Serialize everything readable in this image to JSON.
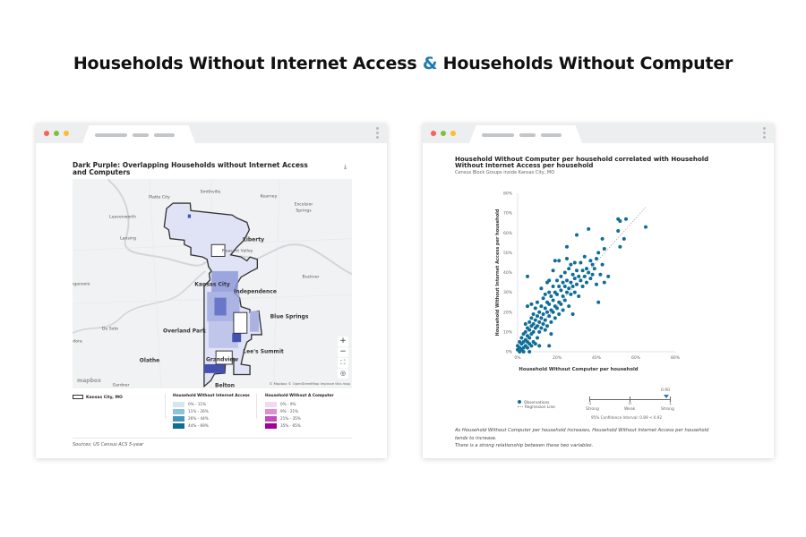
{
  "headline": {
    "part1": "Households Without Internet Access",
    "amp": "&",
    "part2": "Households Without Computer"
  },
  "colors": {
    "accent": "#1f7ab3",
    "point": "#0f6d97",
    "close": "#fe5f57",
    "minimize": "#7cc13b",
    "maximize": "#febc2e",
    "map_fill": "#dfe3f5",
    "map_dark": "#4551b0"
  },
  "left_card": {
    "title": "Dark Purple: Overlapping Households without Internet Access and Computers",
    "download_icon": "download-chart-icon",
    "map": {
      "labels": [
        "Platte City",
        "Smithville",
        "Kearney",
        "Excelsior",
        "Springs",
        "Leavenworth",
        "Lansing",
        "Liberty",
        "Pleasant Valley",
        "Buckner",
        "nganoxie",
        "Kansas City",
        "Independence",
        "Blue Springs",
        "De Soto",
        "Overland Park",
        "udora",
        "Lee's Summit",
        "Olathe",
        "Grandview",
        "Gardner",
        "Belton"
      ],
      "controls": [
        "+",
        "−",
        "⛶",
        "◎"
      ],
      "logo": "mapbox",
      "attribution": "© Mapbox © OpenStreetMap Improve this map"
    },
    "legend": {
      "boundary": "Kansas City, MO",
      "internet_title": "Household Without Internet Access",
      "internet": [
        {
          "label": "0% - 11%",
          "color": "#d6e6ee"
        },
        {
          "label": "11% - 26%",
          "color": "#8fc1d8"
        },
        {
          "label": "26% - 44%",
          "color": "#4595bb"
        },
        {
          "label": "44% - 69%",
          "color": "#0f6d97"
        }
      ],
      "computer_title": "Household Without A Computer",
      "computer": [
        {
          "label": "0% - 9%",
          "color": "#f2d9ef"
        },
        {
          "label": "9% - 21%",
          "color": "#db8fd4"
        },
        {
          "label": "21% - 35%",
          "color": "#c24bbd"
        },
        {
          "label": "35% - 65%",
          "color": "#a3009b"
        }
      ]
    },
    "source": "Sources: US Census ACS 5-year"
  },
  "right_card": {
    "title": "Household Without Computer per household correlated with Household Without Internet Access per household",
    "subtitle": "Census Block Groups inside Kansas City, MO",
    "legend": {
      "observations": "Observations",
      "regression": "Regression Line"
    },
    "correlation": {
      "value": "0.90",
      "ticks": [
        "-1",
        "0",
        "1"
      ],
      "labels": [
        "Strong",
        "Weak",
        "Strong"
      ],
      "ci": "95% Confidence Interval: 0.89 < 0.92"
    },
    "explanation": [
      "As Household Without Computer per household increases, Household Without Internet Access per household",
      "tends to increase.",
      "There is a strong relationship between these two variables."
    ]
  },
  "chart_data": {
    "type": "scatter",
    "xlabel": "Household Without Computer per household",
    "ylabel": "Household Without Internet Access per household",
    "xlim": [
      0,
      80
    ],
    "ylim": [
      0,
      80
    ],
    "xticks": [
      "0%",
      "20%",
      "40%",
      "60%",
      "80%"
    ],
    "yticks": [
      "0%",
      "10%",
      "20%",
      "30%",
      "40%",
      "50%",
      "60%",
      "70%",
      "80%"
    ],
    "regression": [
      [
        0,
        1
      ],
      [
        65,
        73
      ]
    ],
    "points": [
      [
        0,
        1
      ],
      [
        0,
        3
      ],
      [
        1,
        2
      ],
      [
        1,
        5
      ],
      [
        1,
        0
      ],
      [
        2,
        1
      ],
      [
        2,
        4
      ],
      [
        2,
        7
      ],
      [
        3,
        2
      ],
      [
        3,
        5
      ],
      [
        3,
        9
      ],
      [
        3,
        0
      ],
      [
        4,
        3
      ],
      [
        4,
        6
      ],
      [
        4,
        10
      ],
      [
        4,
        14
      ],
      [
        5,
        2
      ],
      [
        5,
        5
      ],
      [
        5,
        8
      ],
      [
        5,
        12
      ],
      [
        5,
        23
      ],
      [
        5,
        38
      ],
      [
        6,
        0
      ],
      [
        6,
        4
      ],
      [
        6,
        7
      ],
      [
        6,
        11
      ],
      [
        6,
        15
      ],
      [
        7,
        3
      ],
      [
        7,
        9
      ],
      [
        7,
        13
      ],
      [
        7,
        17
      ],
      [
        7,
        24
      ],
      [
        8,
        5
      ],
      [
        8,
        10
      ],
      [
        8,
        14
      ],
      [
        8,
        19
      ],
      [
        9,
        4
      ],
      [
        9,
        12
      ],
      [
        9,
        16
      ],
      [
        9,
        22
      ],
      [
        10,
        7
      ],
      [
        10,
        13
      ],
      [
        10,
        18
      ],
      [
        10,
        25
      ],
      [
        11,
        10
      ],
      [
        11,
        15
      ],
      [
        11,
        20
      ],
      [
        11,
        3
      ],
      [
        12,
        12
      ],
      [
        12,
        17
      ],
      [
        12,
        23
      ],
      [
        12,
        32
      ],
      [
        13,
        14
      ],
      [
        13,
        19
      ],
      [
        13,
        27
      ],
      [
        14,
        11
      ],
      [
        14,
        16
      ],
      [
        14,
        22
      ],
      [
        14,
        29
      ],
      [
        15,
        13
      ],
      [
        15,
        20
      ],
      [
        15,
        25
      ],
      [
        15,
        35
      ],
      [
        16,
        3
      ],
      [
        16,
        18
      ],
      [
        16,
        24
      ],
      [
        16,
        30
      ],
      [
        16,
        36
      ],
      [
        17,
        15
      ],
      [
        17,
        21
      ],
      [
        17,
        28
      ],
      [
        17,
        9
      ],
      [
        18,
        20
      ],
      [
        18,
        26
      ],
      [
        18,
        33
      ],
      [
        18,
        41
      ],
      [
        19,
        17
      ],
      [
        19,
        23
      ],
      [
        19,
        30
      ],
      [
        19,
        46
      ],
      [
        20,
        22
      ],
      [
        20,
        29
      ],
      [
        20,
        36
      ],
      [
        21,
        19
      ],
      [
        21,
        25
      ],
      [
        21,
        33
      ],
      [
        21,
        46
      ],
      [
        22,
        24
      ],
      [
        22,
        31
      ],
      [
        22,
        38
      ],
      [
        23,
        21
      ],
      [
        23,
        28
      ],
      [
        23,
        35
      ],
      [
        24,
        26
      ],
      [
        24,
        33
      ],
      [
        24,
        40
      ],
      [
        25,
        30
      ],
      [
        25,
        36
      ],
      [
        25,
        47
      ],
      [
        25,
        53
      ],
      [
        26,
        23
      ],
      [
        26,
        32
      ],
      [
        26,
        42
      ],
      [
        27,
        29
      ],
      [
        27,
        35
      ],
      [
        27,
        44
      ],
      [
        28,
        19
      ],
      [
        28,
        33
      ],
      [
        28,
        39
      ],
      [
        29,
        30
      ],
      [
        29,
        37
      ],
      [
        29,
        45
      ],
      [
        30,
        34
      ],
      [
        30,
        41
      ],
      [
        30,
        59
      ],
      [
        31,
        28
      ],
      [
        31,
        38
      ],
      [
        32,
        36
      ],
      [
        32,
        45
      ],
      [
        33,
        33
      ],
      [
        33,
        41
      ],
      [
        34,
        38
      ],
      [
        34,
        48
      ],
      [
        35,
        35
      ],
      [
        35,
        42
      ],
      [
        36,
        40
      ],
      [
        36,
        62
      ],
      [
        37,
        37
      ],
      [
        37,
        46
      ],
      [
        38,
        39
      ],
      [
        38,
        44
      ],
      [
        39,
        42
      ],
      [
        40,
        34
      ],
      [
        40,
        47
      ],
      [
        41,
        25
      ],
      [
        41,
        50
      ],
      [
        42,
        39
      ],
      [
        43,
        44
      ],
      [
        43,
        57
      ],
      [
        44,
        35
      ],
      [
        44,
        52
      ],
      [
        46,
        38
      ],
      [
        51,
        67
      ],
      [
        52,
        53
      ],
      [
        51,
        61
      ],
      [
        52,
        66
      ],
      [
        54,
        57
      ],
      [
        55,
        67
      ],
      [
        65,
        63
      ]
    ]
  }
}
